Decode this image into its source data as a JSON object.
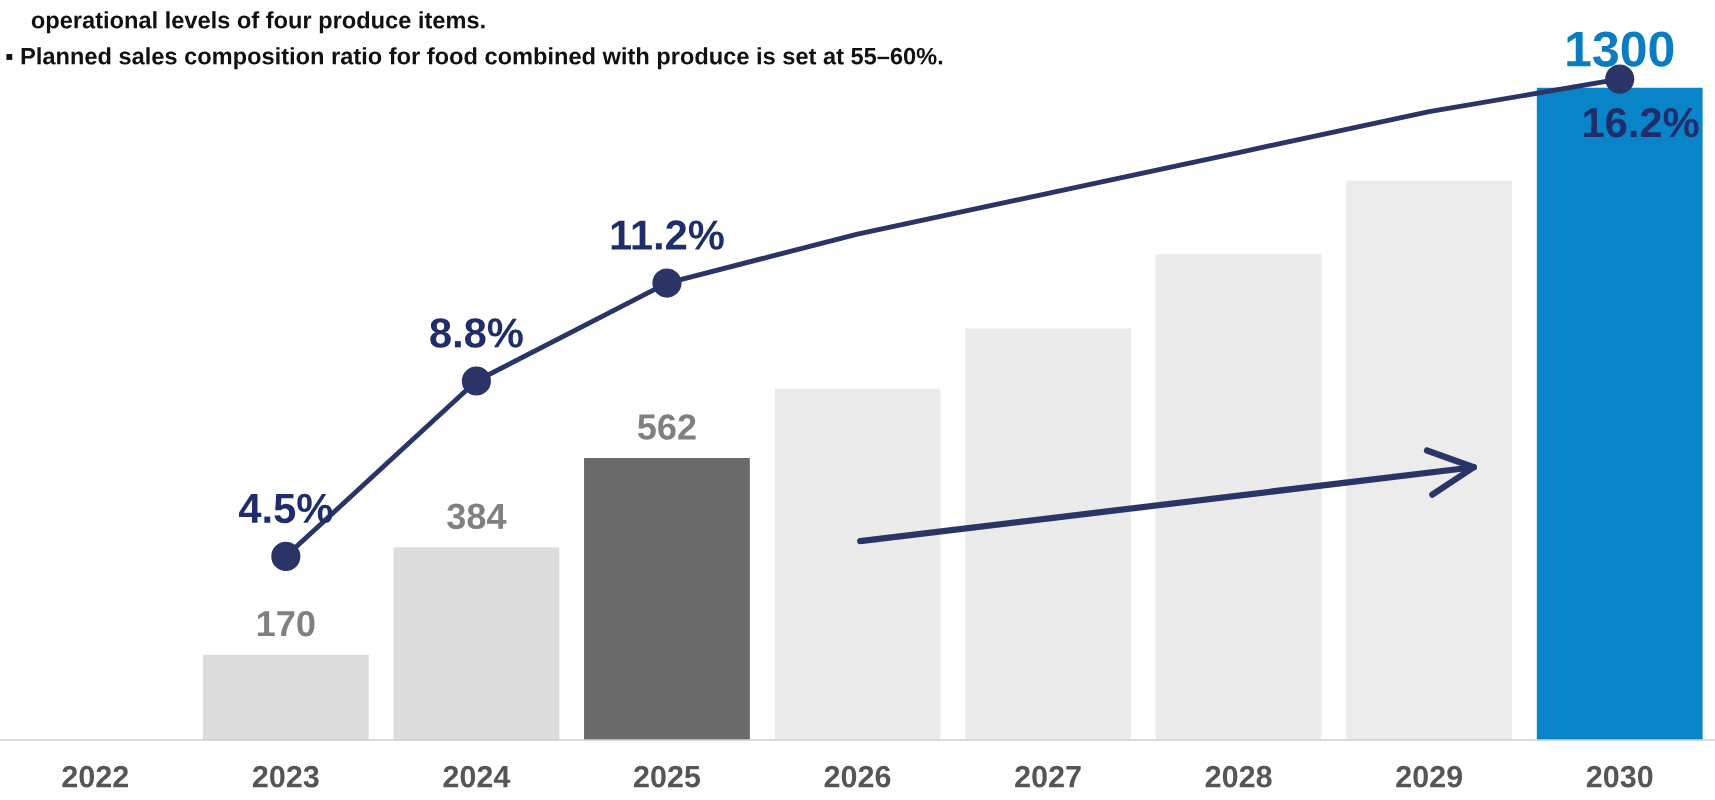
{
  "chart_data": {
    "type": "bar",
    "categories": [
      "2022",
      "2023",
      "2024",
      "2025",
      "2026",
      "2027",
      "2028",
      "2029",
      "2030"
    ],
    "annotations": [
      "operational levels of four produce items.",
      "▪ Planned sales composition ratio for food combined with produce is set at 55–60%."
    ],
    "tick_labels": "x",
    "series": [
      {
        "colors": [
          "#dcdcdc",
          "#dcdcdc",
          "#dcdcdc",
          "#6a6a6a",
          "#ebebeb",
          "#ebebeb",
          "#ebebeb",
          "#ececec",
          "#0a84c8"
        ],
        "values": [
          null,
          170,
          384,
          562,
          700,
          820,
          968,
          1115,
          1300
        ],
        "value_labels": [
          null,
          "170",
          "384",
          "562",
          null,
          null,
          null,
          null,
          "1300"
        ]
      },
      {
        "type": "line",
        "axis": "y2",
        "color": "#2b3467",
        "marker": "circle",
        "line_style": "solid",
        "values": [
          null,
          4.5,
          8.8,
          11.2,
          12.4,
          13.4,
          14.4,
          15.4,
          16.2
        ],
        "value_labels": [
          null,
          "4.5%",
          "8.8%",
          "11.2%",
          null,
          null,
          null,
          null,
          "16.2%"
        ]
      }
    ]
  }
}
